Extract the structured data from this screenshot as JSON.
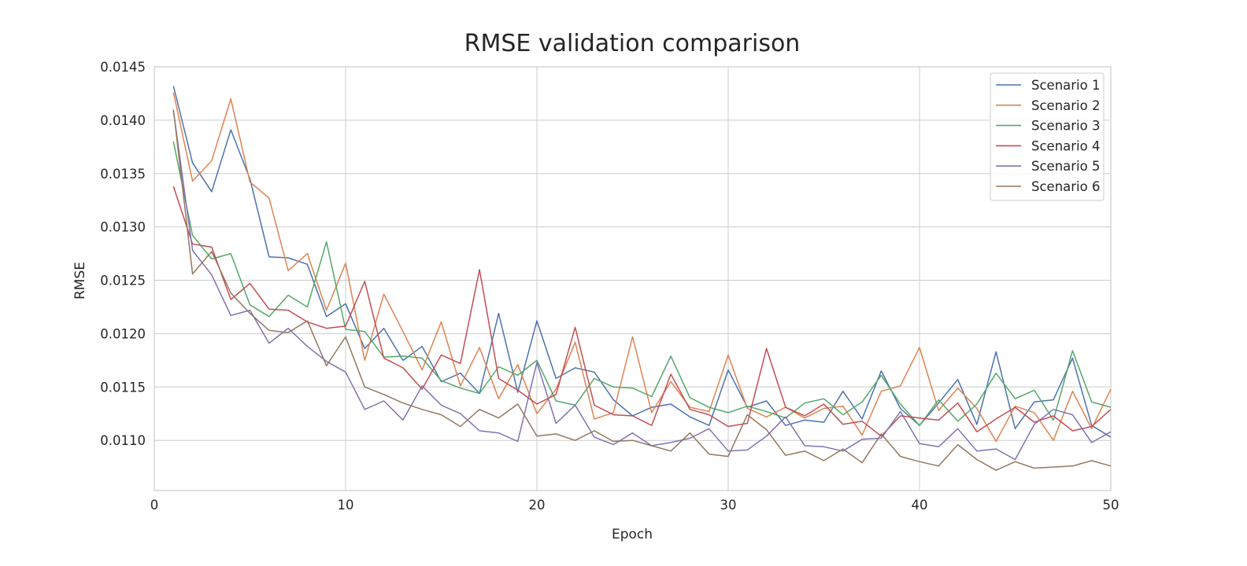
{
  "chart_data": {
    "type": "line",
    "title": "RMSE validation comparison",
    "xlabel": "Epoch",
    "ylabel": "RMSE",
    "xlim": [
      0,
      50
    ],
    "ylim": [
      0.01053,
      0.0145
    ],
    "xticks": [
      0,
      10,
      20,
      30,
      40,
      50
    ],
    "xtick_labels": [
      "0",
      "10",
      "20",
      "30",
      "40",
      "50"
    ],
    "yticks": [
      0.011,
      0.0115,
      0.012,
      0.0125,
      0.013,
      0.0135,
      0.014,
      0.0145
    ],
    "ytick_labels": [
      "0.0110",
      "0.0115",
      "0.0120",
      "0.0125",
      "0.0130",
      "0.0135",
      "0.0140",
      "0.0145"
    ],
    "grid": true,
    "legend_position": "top-right",
    "x": [
      1,
      2,
      3,
      4,
      5,
      6,
      7,
      8,
      9,
      10,
      11,
      12,
      13,
      14,
      15,
      16,
      17,
      18,
      19,
      20,
      21,
      22,
      23,
      24,
      25,
      26,
      27,
      28,
      29,
      30,
      31,
      32,
      33,
      34,
      35,
      36,
      37,
      38,
      39,
      40,
      41,
      42,
      43,
      44,
      45,
      46,
      47,
      48,
      49,
      50
    ],
    "series": [
      {
        "name": "Scenario 1",
        "color": "#4c72b0",
        "values": [
          0.01432,
          0.0136,
          0.01333,
          0.01391,
          0.01345,
          0.01272,
          0.01271,
          0.01265,
          0.01216,
          0.01228,
          0.01186,
          0.01205,
          0.01175,
          0.01188,
          0.01155,
          0.01163,
          0.01144,
          0.01219,
          0.01145,
          0.01212,
          0.01158,
          0.01168,
          0.01164,
          0.01138,
          0.01123,
          0.01131,
          0.01134,
          0.01122,
          0.01114,
          0.01166,
          0.01131,
          0.01137,
          0.01114,
          0.01119,
          0.01117,
          0.01146,
          0.0112,
          0.01165,
          0.0113,
          0.01114,
          0.01135,
          0.01157,
          0.01115,
          0.01183,
          0.01111,
          0.01136,
          0.01138,
          0.01177,
          0.01114,
          0.01103
        ]
      },
      {
        "name": "Scenario 2",
        "color": "#dd8452",
        "values": [
          0.01426,
          0.01343,
          0.01362,
          0.0142,
          0.01342,
          0.01327,
          0.01259,
          0.01275,
          0.01222,
          0.01266,
          0.01175,
          0.01237,
          0.01202,
          0.01166,
          0.01211,
          0.01151,
          0.01187,
          0.01139,
          0.01171,
          0.01125,
          0.01148,
          0.01192,
          0.0112,
          0.01126,
          0.01197,
          0.01126,
          0.01155,
          0.01131,
          0.01127,
          0.0118,
          0.0113,
          0.01122,
          0.01131,
          0.01121,
          0.0113,
          0.01132,
          0.01105,
          0.01146,
          0.01151,
          0.01187,
          0.01128,
          0.01149,
          0.0113,
          0.01099,
          0.01132,
          0.01126,
          0.011,
          0.01146,
          0.01111,
          0.01148
        ]
      },
      {
        "name": "Scenario 3",
        "color": "#55a868",
        "values": [
          0.0138,
          0.01292,
          0.0127,
          0.01275,
          0.01227,
          0.01216,
          0.01236,
          0.01225,
          0.01286,
          0.01204,
          0.01202,
          0.01178,
          0.01179,
          0.01177,
          0.01156,
          0.01149,
          0.01144,
          0.01169,
          0.01161,
          0.01175,
          0.01137,
          0.01133,
          0.01158,
          0.0115,
          0.01149,
          0.01141,
          0.01179,
          0.0114,
          0.01131,
          0.01126,
          0.01132,
          0.01127,
          0.01121,
          0.01135,
          0.01139,
          0.01124,
          0.01136,
          0.01161,
          0.01134,
          0.01114,
          0.01138,
          0.01118,
          0.01134,
          0.01163,
          0.01139,
          0.01147,
          0.01119,
          0.01184,
          0.01136,
          0.01131
        ]
      },
      {
        "name": "Scenario 4",
        "color": "#c44e52",
        "values": [
          0.01338,
          0.01284,
          0.01281,
          0.01232,
          0.01247,
          0.01223,
          0.01222,
          0.01211,
          0.01205,
          0.01207,
          0.01249,
          0.01177,
          0.01168,
          0.01148,
          0.0118,
          0.01172,
          0.0126,
          0.01158,
          0.01147,
          0.01134,
          0.01143,
          0.01206,
          0.01133,
          0.01124,
          0.01123,
          0.01114,
          0.01162,
          0.01129,
          0.01124,
          0.01113,
          0.01116,
          0.01186,
          0.01131,
          0.01123,
          0.01134,
          0.01115,
          0.01118,
          0.01104,
          0.01123,
          0.01121,
          0.01119,
          0.01135,
          0.01108,
          0.0112,
          0.01131,
          0.01117,
          0.01123,
          0.01109,
          0.01113,
          0.01129
        ]
      },
      {
        "name": "Scenario 5",
        "color": "#8172b3",
        "values": [
          0.01409,
          0.01278,
          0.01255,
          0.01217,
          0.01222,
          0.01191,
          0.01205,
          0.01188,
          0.01174,
          0.01164,
          0.01129,
          0.01137,
          0.01119,
          0.01151,
          0.01133,
          0.01125,
          0.01109,
          0.01107,
          0.01099,
          0.01173,
          0.01116,
          0.01133,
          0.01103,
          0.01096,
          0.01107,
          0.01095,
          0.01098,
          0.01102,
          0.01111,
          0.0109,
          0.01091,
          0.01104,
          0.01122,
          0.01095,
          0.01094,
          0.0109,
          0.01101,
          0.01102,
          0.01127,
          0.01097,
          0.01094,
          0.01111,
          0.0109,
          0.01092,
          0.01082,
          0.01115,
          0.01129,
          0.01124,
          0.01098,
          0.01108
        ]
      },
      {
        "name": "Scenario 6",
        "color": "#937860",
        "values": [
          0.0141,
          0.01256,
          0.01277,
          0.01238,
          0.01219,
          0.01203,
          0.01201,
          0.01212,
          0.0117,
          0.01197,
          0.0115,
          0.01143,
          0.01135,
          0.01129,
          0.01124,
          0.01113,
          0.01129,
          0.01121,
          0.01134,
          0.01104,
          0.01106,
          0.011,
          0.01109,
          0.01099,
          0.011,
          0.01095,
          0.0109,
          0.01107,
          0.01087,
          0.01085,
          0.01124,
          0.0111,
          0.01086,
          0.0109,
          0.01081,
          0.01092,
          0.01079,
          0.01106,
          0.01085,
          0.0108,
          0.01076,
          0.01096,
          0.01082,
          0.01072,
          0.0108,
          0.01074,
          0.01075,
          0.01076,
          0.01081,
          0.01076
        ]
      }
    ]
  }
}
